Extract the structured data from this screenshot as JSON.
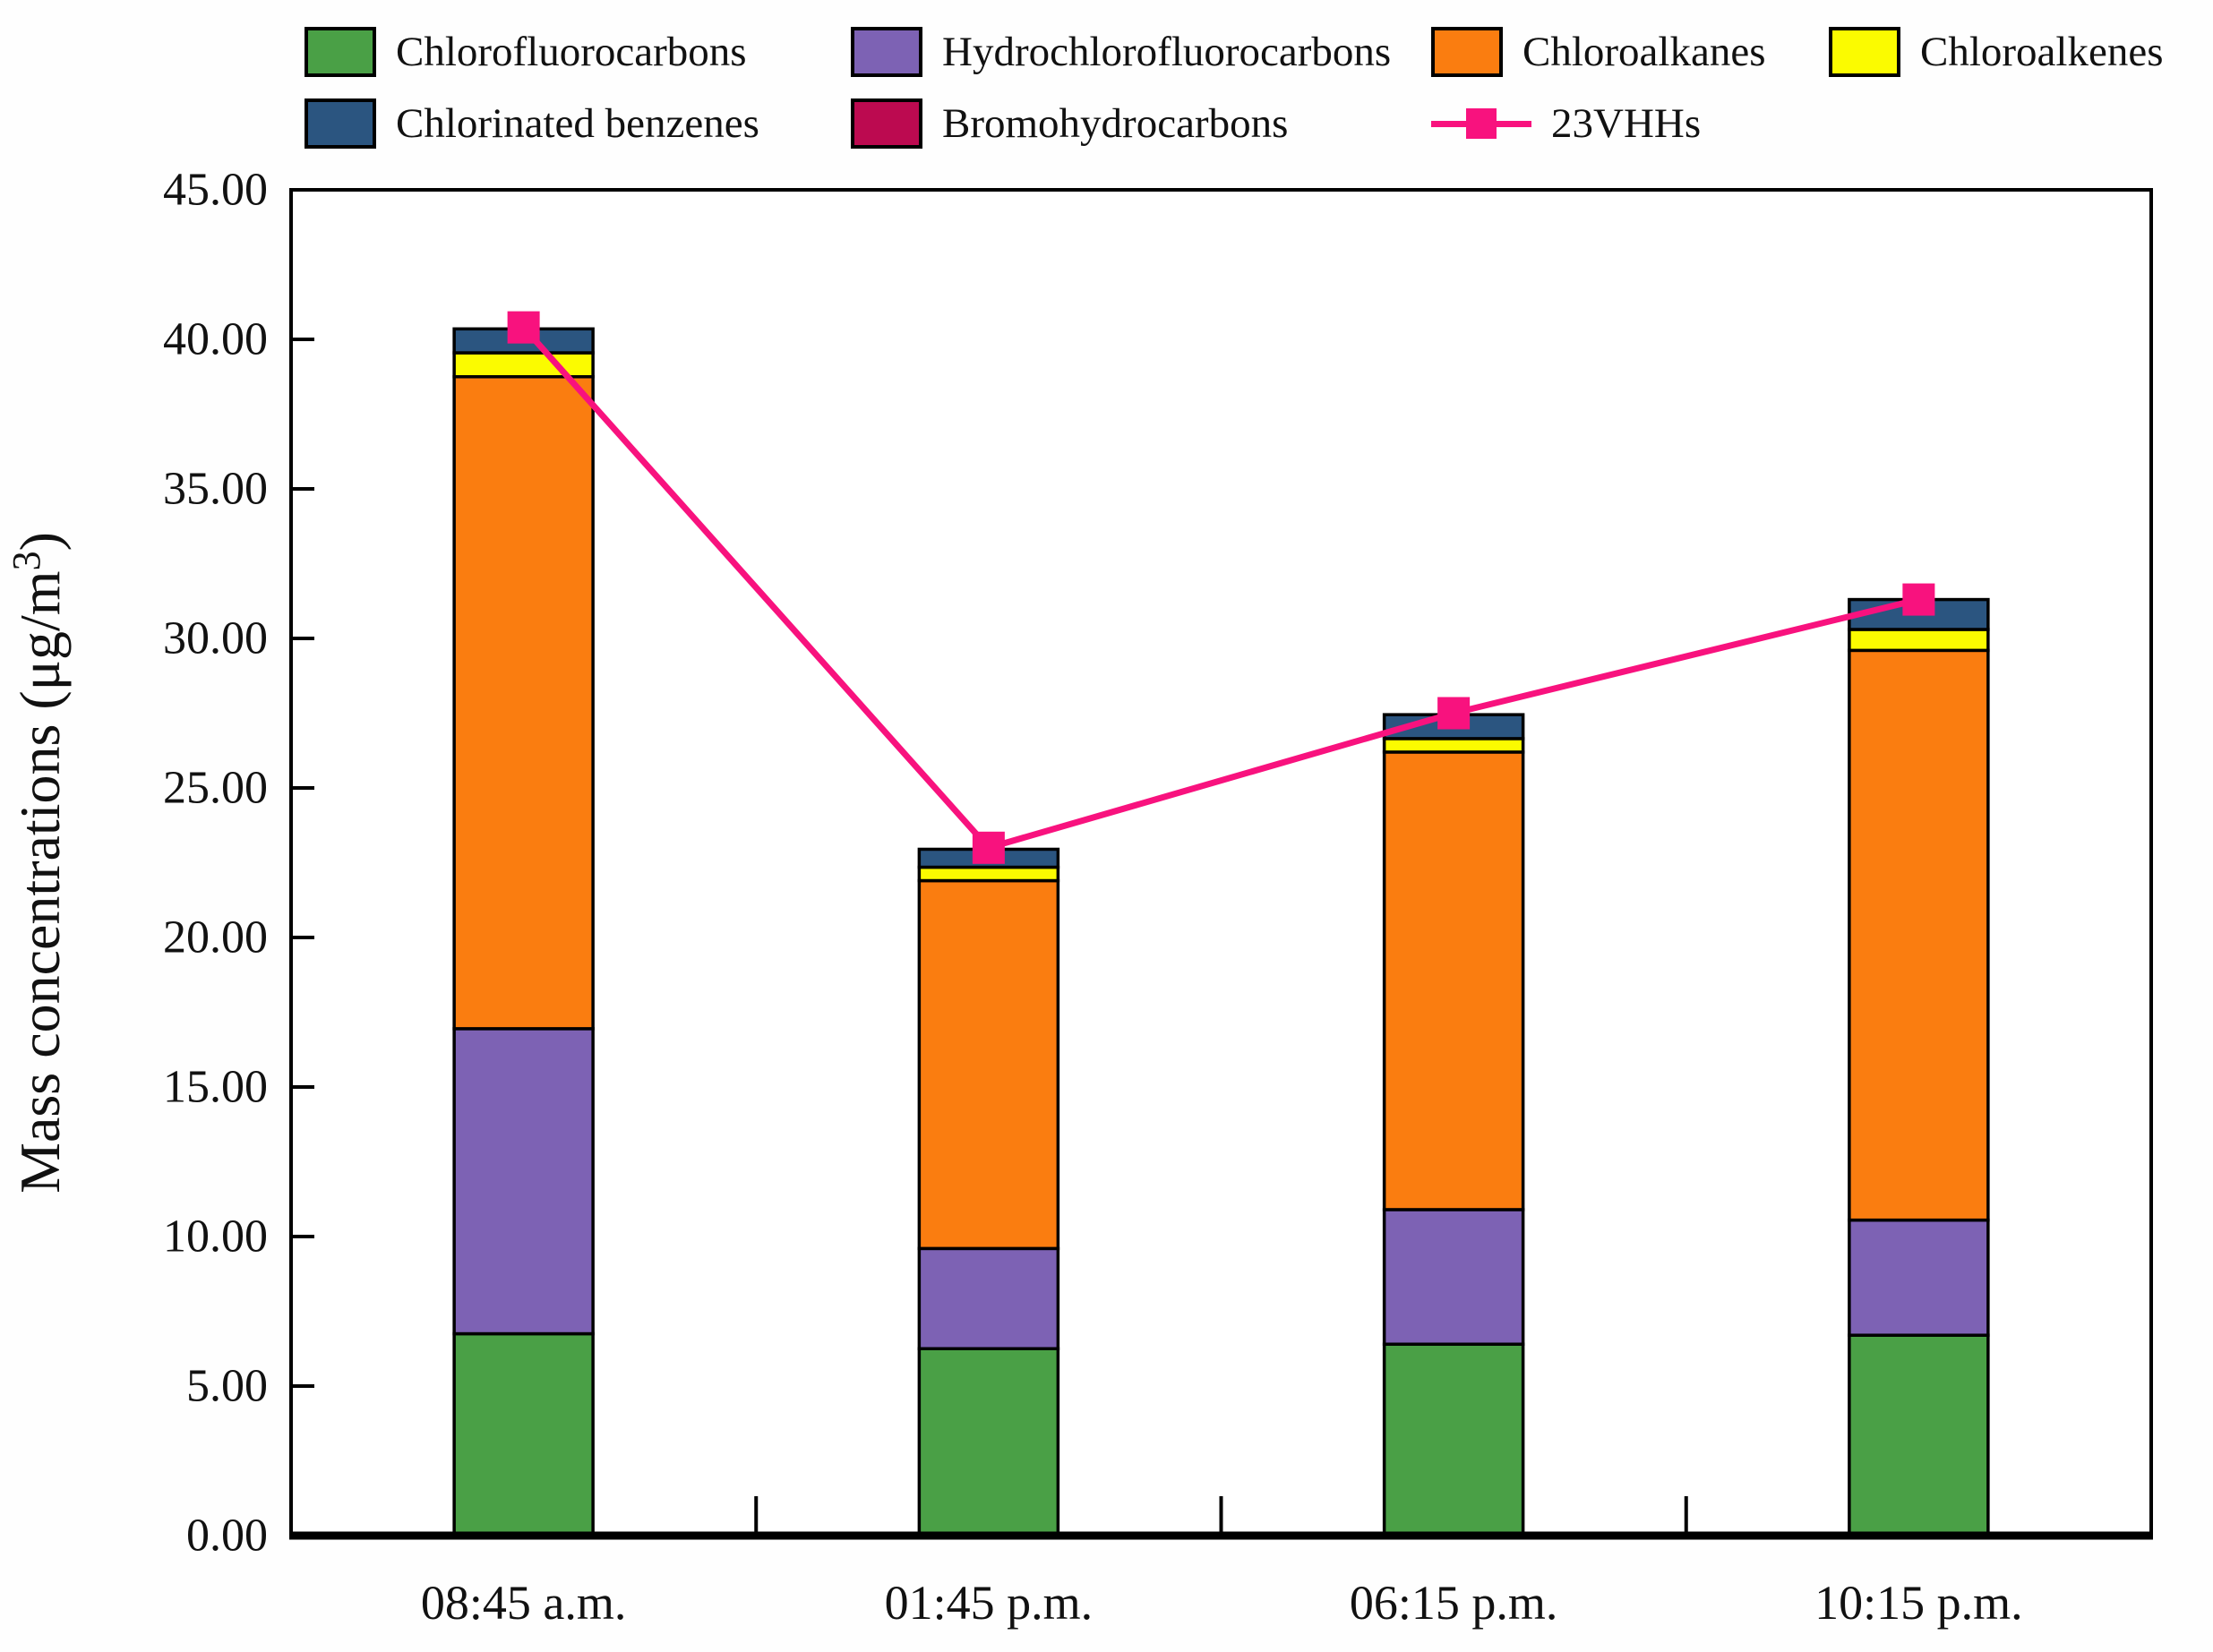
{
  "figure": {
    "background": "#fefefe",
    "plot_background": "#ffffff",
    "frame_color": "#000000"
  },
  "chart_data": {
    "type": "bar",
    "subtype": "stacked-bars-with-line-overlay",
    "title": "",
    "xlabel": "",
    "ylabel": "Mass concentrations (μg/m³)",
    "ylim": [
      0,
      45
    ],
    "ytick_step": 5,
    "ytick_labels": [
      "0.00",
      "5.00",
      "10.00",
      "15.00",
      "20.00",
      "25.00",
      "30.00",
      "35.00",
      "40.00",
      "45.00"
    ],
    "grid": false,
    "legend_position": "top",
    "categories": [
      "08:45 a.m.",
      "01:45 p.m.",
      "06:15 p.m.",
      "10:15 p.m."
    ],
    "series": [
      {
        "name": "Chlorofluorocarbons",
        "color": "#4AA046",
        "values": [
          6.75,
          6.25,
          6.4,
          6.7
        ]
      },
      {
        "name": "Hydrochlorofluorocarbons",
        "color": "#7D62B4",
        "values": [
          10.2,
          3.35,
          4.5,
          3.85
        ]
      },
      {
        "name": "Chloroalkanes",
        "color": "#FA7D10",
        "values": [
          21.8,
          12.3,
          15.3,
          19.05
        ]
      },
      {
        "name": "Chloroalkenes",
        "color": "#FBFB00",
        "values": [
          0.8,
          0.45,
          0.45,
          0.7
        ]
      },
      {
        "name": "Chlorinated benzenes",
        "color": "#2B5580",
        "values": [
          0.8,
          0.6,
          0.8,
          1.0
        ]
      },
      {
        "name": "Bromohydrocarbons",
        "color": "#BC0A50",
        "values": [
          0.0,
          0.0,
          0.0,
          0.0
        ]
      }
    ],
    "line_series": {
      "name": "23VHHs",
      "color": "#F8127E",
      "marker": "square",
      "values": [
        40.4,
        23.0,
        27.5,
        31.3
      ]
    },
    "stack_totals": [
      40.35,
      22.95,
      27.45,
      31.3
    ]
  }
}
